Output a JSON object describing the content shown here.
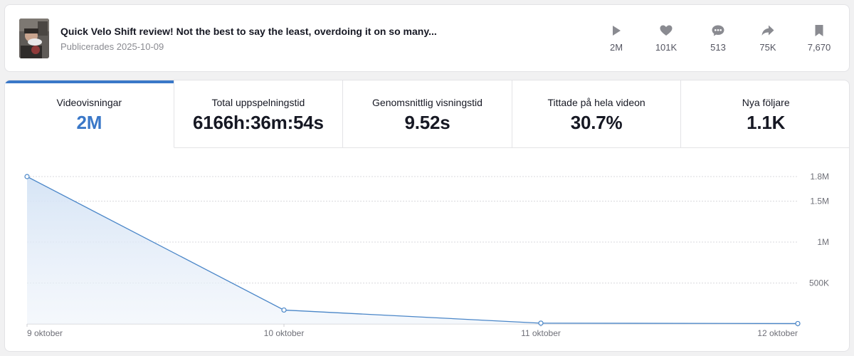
{
  "video": {
    "title": "Quick Velo Shift review! Not the best to say the least, overdoing it on so many...",
    "published": "Publicerades 2025-10-09"
  },
  "stats": [
    {
      "icon": "play-icon",
      "value": "2M"
    },
    {
      "icon": "heart-icon",
      "value": "101K"
    },
    {
      "icon": "comment-icon",
      "value": "513"
    },
    {
      "icon": "share-icon",
      "value": "75K"
    },
    {
      "icon": "bookmark-icon",
      "value": "7,670"
    }
  ],
  "tabs": [
    {
      "label": "Videovisningar",
      "value": "2M",
      "active": true
    },
    {
      "label": "Total uppspelningstid",
      "value": "6166h:36m:54s",
      "active": false
    },
    {
      "label": "Genomsnittlig visningstid",
      "value": "9.52s",
      "active": false
    },
    {
      "label": "Tittade på hela videon",
      "value": "30.7%",
      "active": false
    },
    {
      "label": "Nya följare",
      "value": "1.1K",
      "active": false
    }
  ],
  "colors": {
    "accent": "#3a78c8",
    "line": "#4a86c8",
    "fill": "#dce8f6"
  },
  "chart_data": {
    "type": "area",
    "categories": [
      "9 oktober",
      "10 oktober",
      "11 oktober",
      "12 oktober"
    ],
    "values": [
      1800000,
      170000,
      10000,
      5000
    ],
    "yticks": [
      {
        "value": 500000,
        "label": "500K"
      },
      {
        "value": 1000000,
        "label": "1M"
      },
      {
        "value": 1500000,
        "label": "1.5M"
      },
      {
        "value": 1800000,
        "label": "1.8M"
      }
    ],
    "ylim": [
      0,
      1800000
    ],
    "grid": true,
    "y_axis_side": "right"
  }
}
